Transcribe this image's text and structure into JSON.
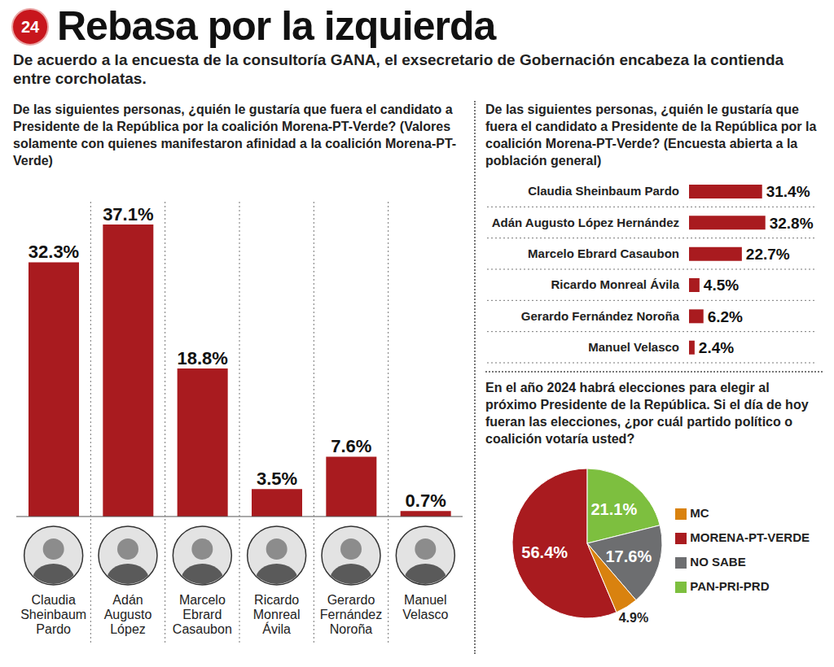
{
  "logo": "24",
  "title": "Rebasa por la izquierda",
  "subtitle": "De acuerdo a la encuesta de la consultoría GANA, el exsecretario de Gobernación encabeza la contienda entre corcholatas.",
  "chart_data": [
    {
      "type": "bar",
      "title": "De las siguientes personas, ¿quién le gustaría que fuera el candidato a Presidente de la República por la coalición Morena-PT-Verde? (Valores solamente con quienes manifestaron afinidad a la coalición Morena-PT-Verde)",
      "categories": [
        "Claudia Sheinbaum Pardo",
        "Adán Augusto López",
        "Marcelo Ebrard Casaubon",
        "Ricardo Monreal Ávila",
        "Gerardo Fernández Noroña",
        "Manuel Velasco"
      ],
      "values": [
        32.3,
        37.1,
        18.8,
        3.5,
        7.6,
        0.7
      ],
      "value_labels": [
        "32.3%",
        "37.1%",
        "18.8%",
        "3.5%",
        "7.6%",
        "0.7%"
      ],
      "color": "#a91b1f",
      "ylim": [
        0,
        40
      ],
      "data_labels": true,
      "tick_labels": "x"
    },
    {
      "type": "bar",
      "orientation": "horizontal",
      "title": "De las siguientes personas, ¿quién le gustaría que fuera el candidato a Presidente de la República por la coalición Morena-PT-Verde? (Encuesta abierta a la población general)",
      "categories": [
        "Claudia Sheinbaum Pardo",
        "Adán Augusto López Hernández",
        "Marcelo Ebrard Casaubon",
        "Ricardo Monreal Ávila",
        "Gerardo Fernández Noroña",
        "Manuel Velasco"
      ],
      "values": [
        31.4,
        32.8,
        22.7,
        4.5,
        6.2,
        2.4
      ],
      "value_labels": [
        "31.4%",
        "32.8%",
        "22.7%",
        "4.5%",
        "6.2%",
        "2.4%"
      ],
      "color": "#a91b1f",
      "xlim": [
        0,
        35
      ],
      "data_labels": true,
      "tick_labels": "y"
    },
    {
      "type": "pie",
      "title": "En el año 2024 habrá elecciones para elegir al próximo Presidente de la República. Si el día de hoy fueran las elecciones, ¿por cuál partido político o coalición votaría usted?",
      "categories": [
        "MORENA-PT-VERDE",
        "PAN-PRI-PRD",
        "NO SABE",
        "MC"
      ],
      "values": [
        56.4,
        21.1,
        17.6,
        4.9
      ],
      "value_labels": [
        "56.4%",
        "21.1%",
        "17.6%",
        "4.9%"
      ],
      "colors": [
        "#a91b1f",
        "#7dbf3f",
        "#6d6e70",
        "#d9820f"
      ],
      "data_labels": true,
      "legend": "right"
    }
  ]
}
